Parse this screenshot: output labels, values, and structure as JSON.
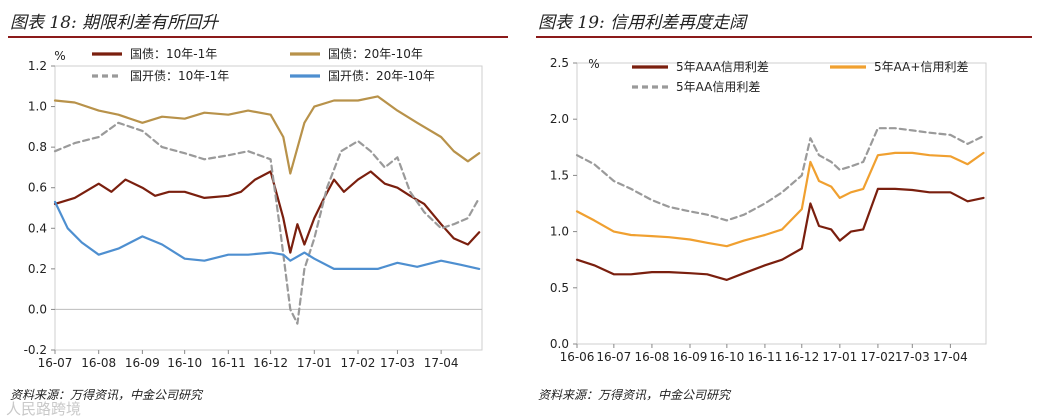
{
  "charts": [
    {
      "title": "图表 18:  期限利差有所回升",
      "source": "资料来源：万得资讯，中金公司研究",
      "chart_data": {
        "type": "line",
        "unit_label": "%",
        "ylim": [
          -0.2,
          1.2
        ],
        "yticks": [
          "1.2",
          "1.0",
          "0.8",
          "0.6",
          "0.4",
          "0.2",
          "0.0",
          "-0.2"
        ],
        "ytick_values": [
          1.2,
          1.0,
          0.8,
          0.6,
          0.4,
          0.2,
          0.0,
          -0.2
        ],
        "xlim": [
          "2016-07-01",
          "2017-04-30"
        ],
        "xticks": [
          "16-07",
          "16-08",
          "16-09",
          "16-10",
          "16-11",
          "16-12",
          "17-01",
          "17-02",
          "17-03",
          "17-04"
        ],
        "xtick_dates": [
          "2016-07-01",
          "2016-08-01",
          "2016-09-01",
          "2016-10-01",
          "2016-11-01",
          "2016-12-01",
          "2017-01-01",
          "2017-02-01",
          "2017-03-01",
          "2017-04-01"
        ],
        "legend": "top",
        "series": [
          {
            "name": "国债：10年-1年",
            "color": "#7a1f0e",
            "dash": "solid",
            "x": [
              "2016-07-01",
              "2016-07-15",
              "2016-08-01",
              "2016-08-10",
              "2016-08-20",
              "2016-09-01",
              "2016-09-10",
              "2016-09-20",
              "2016-10-01",
              "2016-10-15",
              "2016-11-01",
              "2016-11-10",
              "2016-11-20",
              "2016-12-01",
              "2016-12-10",
              "2016-12-15",
              "2016-12-20",
              "2016-12-25",
              "2017-01-01",
              "2017-01-08",
              "2017-01-15",
              "2017-01-22",
              "2017-02-01",
              "2017-02-10",
              "2017-02-20",
              "2017-03-01",
              "2017-03-10",
              "2017-03-20",
              "2017-04-01",
              "2017-04-10",
              "2017-04-20",
              "2017-04-28"
            ],
            "y": [
              0.52,
              0.55,
              0.62,
              0.58,
              0.64,
              0.6,
              0.56,
              0.58,
              0.58,
              0.55,
              0.56,
              0.58,
              0.64,
              0.68,
              0.45,
              0.28,
              0.42,
              0.32,
              0.45,
              0.55,
              0.64,
              0.58,
              0.64,
              0.68,
              0.62,
              0.6,
              0.56,
              0.52,
              0.42,
              0.35,
              0.32,
              0.38
            ]
          },
          {
            "name": "国债：20年-10年",
            "color": "#b8924a",
            "dash": "solid",
            "x": [
              "2016-07-01",
              "2016-07-15",
              "2016-08-01",
              "2016-08-15",
              "2016-09-01",
              "2016-09-15",
              "2016-10-01",
              "2016-10-15",
              "2016-11-01",
              "2016-11-15",
              "2016-12-01",
              "2016-12-10",
              "2016-12-15",
              "2016-12-25",
              "2017-01-01",
              "2017-01-15",
              "2017-02-01",
              "2017-02-15",
              "2017-03-01",
              "2017-03-15",
              "2017-04-01",
              "2017-04-10",
              "2017-04-20",
              "2017-04-28"
            ],
            "y": [
              1.03,
              1.02,
              0.98,
              0.96,
              0.92,
              0.95,
              0.94,
              0.97,
              0.96,
              0.98,
              0.96,
              0.85,
              0.67,
              0.92,
              1.0,
              1.03,
              1.03,
              1.05,
              0.98,
              0.92,
              0.85,
              0.78,
              0.73,
              0.77
            ]
          },
          {
            "name": "国开债：10年-1年",
            "color": "#9a9a9a",
            "dash": "dashed",
            "x": [
              "2016-07-01",
              "2016-07-15",
              "2016-08-01",
              "2016-08-15",
              "2016-09-01",
              "2016-09-15",
              "2016-10-01",
              "2016-10-15",
              "2016-11-01",
              "2016-11-15",
              "2016-12-01",
              "2016-12-08",
              "2016-12-15",
              "2016-12-20",
              "2016-12-25",
              "2017-01-01",
              "2017-01-10",
              "2017-01-20",
              "2017-02-01",
              "2017-02-10",
              "2017-02-20",
              "2017-03-01",
              "2017-03-10",
              "2017-03-20",
              "2017-04-01",
              "2017-04-10",
              "2017-04-20",
              "2017-04-28"
            ],
            "y": [
              0.78,
              0.82,
              0.85,
              0.92,
              0.88,
              0.8,
              0.77,
              0.74,
              0.76,
              0.78,
              0.74,
              0.38,
              0.0,
              -0.07,
              0.2,
              0.35,
              0.6,
              0.78,
              0.83,
              0.78,
              0.7,
              0.75,
              0.58,
              0.48,
              0.4,
              0.42,
              0.45,
              0.55
            ]
          },
          {
            "name": "国开债：20年-10年",
            "color": "#4e8fd0",
            "dash": "solid",
            "x": [
              "2016-07-01",
              "2016-07-10",
              "2016-07-20",
              "2016-08-01",
              "2016-08-15",
              "2016-09-01",
              "2016-09-15",
              "2016-10-01",
              "2016-10-15",
              "2016-11-01",
              "2016-11-15",
              "2016-12-01",
              "2016-12-10",
              "2016-12-15",
              "2016-12-25",
              "2017-01-01",
              "2017-01-15",
              "2017-02-01",
              "2017-02-15",
              "2017-03-01",
              "2017-03-15",
              "2017-04-01",
              "2017-04-15",
              "2017-04-28"
            ],
            "y": [
              0.53,
              0.4,
              0.33,
              0.27,
              0.3,
              0.36,
              0.32,
              0.25,
              0.24,
              0.27,
              0.27,
              0.28,
              0.27,
              0.24,
              0.28,
              0.25,
              0.2,
              0.2,
              0.2,
              0.23,
              0.21,
              0.24,
              0.22,
              0.2
            ]
          }
        ]
      }
    },
    {
      "title": "图表 19:  信用利差再度走阔",
      "source": "资料来源：万得资讯，中金公司研究",
      "chart_data": {
        "type": "line",
        "unit_label": "%",
        "ylim": [
          0.0,
          2.5
        ],
        "yticks": [
          "2.5",
          "2.0",
          "1.5",
          "1.0",
          "0.5",
          "0.0"
        ],
        "ytick_values": [
          2.5,
          2.0,
          1.5,
          1.0,
          0.5,
          0.0
        ],
        "xlim": [
          "2016-06-01",
          "2017-04-30"
        ],
        "xticks": [
          "16-06",
          "16-07",
          "16-08",
          "16-09",
          "16-10",
          "16-11",
          "16-12",
          "17-01",
          "17-02",
          "17-03",
          "17-04"
        ],
        "xtick_dates": [
          "2016-06-01",
          "2016-07-01",
          "2016-08-01",
          "2016-09-01",
          "2016-10-01",
          "2016-11-01",
          "2016-12-01",
          "2017-01-01",
          "2017-02-01",
          "2017-03-01",
          "2017-04-01"
        ],
        "legend": "top",
        "series": [
          {
            "name": "5年AAA信用利差",
            "color": "#7a1f0e",
            "dash": "solid",
            "x": [
              "2016-06-01",
              "2016-06-15",
              "2016-07-01",
              "2016-07-15",
              "2016-08-01",
              "2016-08-15",
              "2016-09-01",
              "2016-09-15",
              "2016-10-01",
              "2016-10-15",
              "2016-11-01",
              "2016-11-15",
              "2016-12-01",
              "2016-12-08",
              "2016-12-15",
              "2016-12-25",
              "2017-01-01",
              "2017-01-10",
              "2017-01-20",
              "2017-02-01",
              "2017-02-15",
              "2017-03-01",
              "2017-03-15",
              "2017-04-01",
              "2017-04-15",
              "2017-04-28"
            ],
            "y": [
              0.75,
              0.7,
              0.62,
              0.62,
              0.64,
              0.64,
              0.63,
              0.62,
              0.57,
              0.63,
              0.7,
              0.75,
              0.85,
              1.25,
              1.05,
              1.02,
              0.92,
              1.0,
              1.02,
              1.38,
              1.38,
              1.37,
              1.35,
              1.35,
              1.27,
              1.3
            ]
          },
          {
            "name": "5年AA+信用利差",
            "color": "#f0a030",
            "dash": "solid",
            "x": [
              "2016-06-01",
              "2016-06-15",
              "2016-07-01",
              "2016-07-15",
              "2016-08-01",
              "2016-08-15",
              "2016-09-01",
              "2016-09-15",
              "2016-10-01",
              "2016-10-15",
              "2016-11-01",
              "2016-11-15",
              "2016-12-01",
              "2016-12-08",
              "2016-12-15",
              "2016-12-25",
              "2017-01-01",
              "2017-01-10",
              "2017-01-20",
              "2017-02-01",
              "2017-02-15",
              "2017-03-01",
              "2017-03-15",
              "2017-04-01",
              "2017-04-15",
              "2017-04-28"
            ],
            "y": [
              1.18,
              1.1,
              1.0,
              0.97,
              0.96,
              0.95,
              0.93,
              0.9,
              0.87,
              0.92,
              0.97,
              1.02,
              1.2,
              1.62,
              1.45,
              1.4,
              1.3,
              1.35,
              1.38,
              1.68,
              1.7,
              1.7,
              1.68,
              1.67,
              1.6,
              1.7
            ]
          },
          {
            "name": "5年AA信用利差",
            "color": "#9a9a9a",
            "dash": "dashed",
            "x": [
              "2016-06-01",
              "2016-06-15",
              "2016-07-01",
              "2016-07-15",
              "2016-08-01",
              "2016-08-15",
              "2016-09-01",
              "2016-09-15",
              "2016-10-01",
              "2016-10-15",
              "2016-11-01",
              "2016-11-15",
              "2016-12-01",
              "2016-12-08",
              "2016-12-15",
              "2016-12-25",
              "2017-01-01",
              "2017-01-10",
              "2017-01-20",
              "2017-02-01",
              "2017-02-15",
              "2017-03-01",
              "2017-03-15",
              "2017-04-01",
              "2017-04-15",
              "2017-04-28"
            ],
            "y": [
              1.68,
              1.6,
              1.45,
              1.38,
              1.28,
              1.22,
              1.18,
              1.15,
              1.1,
              1.15,
              1.25,
              1.35,
              1.5,
              1.83,
              1.68,
              1.62,
              1.55,
              1.58,
              1.62,
              1.92,
              1.92,
              1.9,
              1.88,
              1.86,
              1.78,
              1.85
            ]
          }
        ]
      }
    }
  ],
  "watermark": "人民路跨境"
}
